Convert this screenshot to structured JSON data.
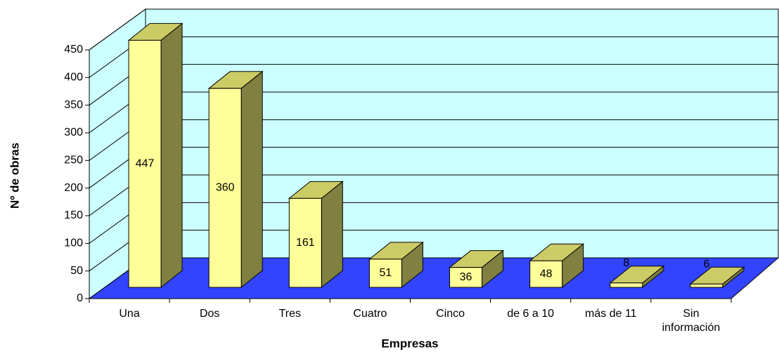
{
  "chart_data": {
    "type": "bar3d",
    "x_label": "Empresas",
    "y_label": "Nº de obras",
    "categories": [
      "Una",
      "Dos",
      "Tres",
      "Cuatro",
      "Cinco",
      "de 6 a 10",
      "más de 11",
      "Sin información"
    ],
    "values": [
      447,
      360,
      161,
      51,
      36,
      48,
      8,
      6
    ],
    "color": "#ffff99",
    "wall_color": "#ccffff",
    "floor_color": "#3344ff",
    "ylim": [
      0,
      450
    ],
    "yticks": [
      0,
      50,
      100,
      150,
      200,
      250,
      300,
      350,
      400,
      450
    ],
    "grid": true
  }
}
